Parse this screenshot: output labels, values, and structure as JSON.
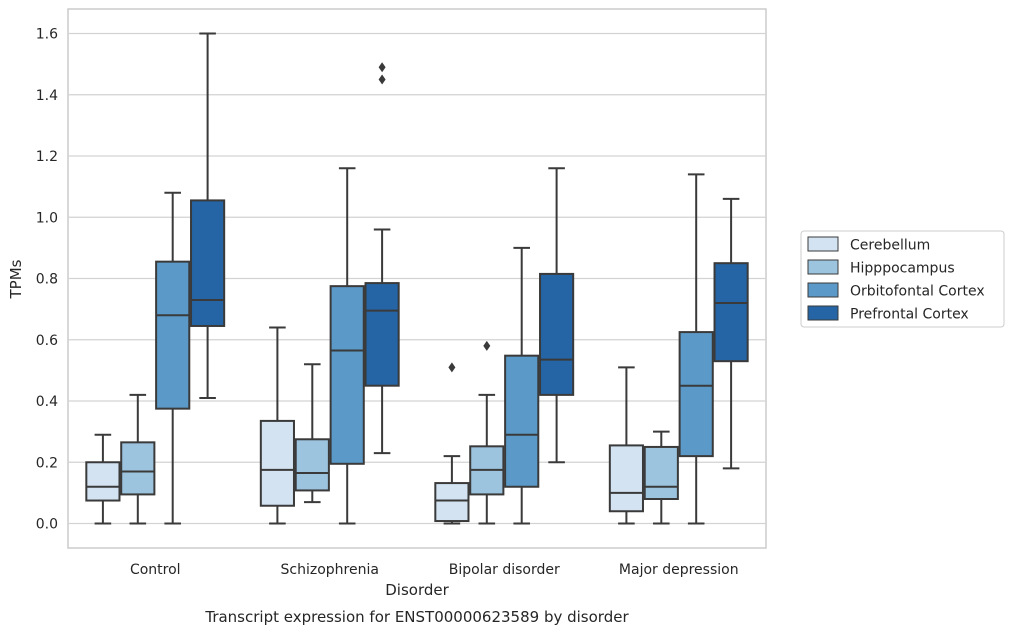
{
  "chart_data": {
    "type": "boxplot",
    "title": "",
    "caption": "Transcript expression for ENST00000623589 by disorder",
    "xlabel": "Disorder",
    "ylabel": "TPMs",
    "ylim": [
      -0.08,
      1.68
    ],
    "yticks": [
      "0.0",
      "0.2",
      "0.4",
      "0.6",
      "0.8",
      "1.0",
      "1.2",
      "1.4",
      "1.6"
    ],
    "grid": "horizontal",
    "legend_position": "right",
    "categories": [
      "Control",
      "Schizophrenia",
      "Bipolar disorder",
      "Major depression"
    ],
    "series": [
      {
        "name": "Cerebellum",
        "color": "#d3e3f2",
        "boxes": [
          {
            "whisker_low": 0.0,
            "q1": 0.075,
            "median": 0.12,
            "q3": 0.2,
            "whisker_high": 0.29,
            "outliers": []
          },
          {
            "whisker_low": 0.0,
            "q1": 0.058,
            "median": 0.175,
            "q3": 0.335,
            "whisker_high": 0.64,
            "outliers": []
          },
          {
            "whisker_low": 0.0,
            "q1": 0.008,
            "median": 0.075,
            "q3": 0.132,
            "whisker_high": 0.22,
            "outliers": [
              0.51
            ]
          },
          {
            "whisker_low": 0.0,
            "q1": 0.04,
            "median": 0.1,
            "q3": 0.255,
            "whisker_high": 0.51,
            "outliers": []
          }
        ]
      },
      {
        "name": "Hipppocampus",
        "color": "#9dc4de",
        "boxes": [
          {
            "whisker_low": 0.0,
            "q1": 0.095,
            "median": 0.17,
            "q3": 0.265,
            "whisker_high": 0.42,
            "outliers": []
          },
          {
            "whisker_low": 0.07,
            "q1": 0.108,
            "median": 0.165,
            "q3": 0.275,
            "whisker_high": 0.52,
            "outliers": []
          },
          {
            "whisker_low": 0.0,
            "q1": 0.095,
            "median": 0.175,
            "q3": 0.252,
            "whisker_high": 0.42,
            "outliers": [
              0.58
            ]
          },
          {
            "whisker_low": 0.0,
            "q1": 0.08,
            "median": 0.12,
            "q3": 0.25,
            "whisker_high": 0.3,
            "outliers": []
          }
        ]
      },
      {
        "name": "Orbitofontal Cortex",
        "color": "#5b9ac8",
        "boxes": [
          {
            "whisker_low": 0.0,
            "q1": 0.375,
            "median": 0.68,
            "q3": 0.855,
            "whisker_high": 1.08,
            "outliers": []
          },
          {
            "whisker_low": 0.0,
            "q1": 0.195,
            "median": 0.565,
            "q3": 0.775,
            "whisker_high": 1.16,
            "outliers": []
          },
          {
            "whisker_low": 0.0,
            "q1": 0.12,
            "median": 0.29,
            "q3": 0.548,
            "whisker_high": 0.9,
            "outliers": []
          },
          {
            "whisker_low": 0.0,
            "q1": 0.22,
            "median": 0.45,
            "q3": 0.625,
            "whisker_high": 1.14,
            "outliers": []
          }
        ]
      },
      {
        "name": "Prefrontal Cortex",
        "color": "#2565a5",
        "boxes": [
          {
            "whisker_low": 0.41,
            "q1": 0.645,
            "median": 0.73,
            "q3": 1.055,
            "whisker_high": 1.6,
            "outliers": []
          },
          {
            "whisker_low": 0.23,
            "q1": 0.45,
            "median": 0.695,
            "q3": 0.785,
            "whisker_high": 0.96,
            "outliers": [
              1.45,
              1.49
            ]
          },
          {
            "whisker_low": 0.2,
            "q1": 0.42,
            "median": 0.535,
            "q3": 0.815,
            "whisker_high": 1.16,
            "outliers": []
          },
          {
            "whisker_low": 0.18,
            "q1": 0.53,
            "median": 0.72,
            "q3": 0.85,
            "whisker_high": 1.06,
            "outliers": []
          }
        ]
      }
    ]
  }
}
